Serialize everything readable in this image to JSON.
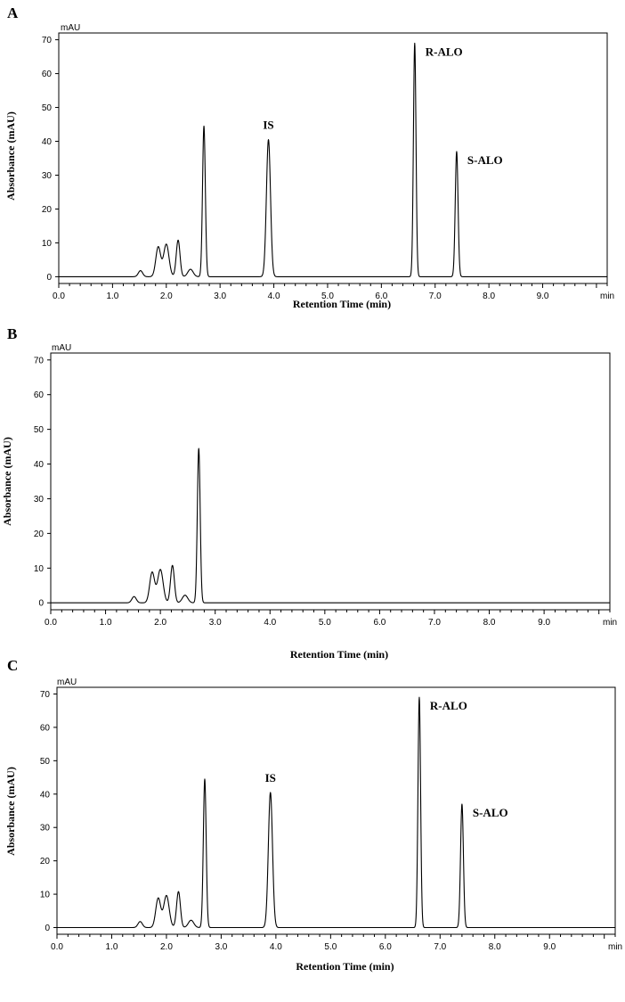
{
  "chart_data": [
    {
      "type": "line",
      "panel_label": "A",
      "y_unit": "mAU",
      "x_unit": "min",
      "xlabel": "Retention Time (min)",
      "ylabel": "Absorbance (mAU)",
      "xlim": [
        0,
        10.2
      ],
      "ylim": [
        -2,
        72
      ],
      "x_ticks": [
        "0.0",
        "1.0",
        "2.0",
        "3.0",
        "4.0",
        "5.0",
        "6.0",
        "7.0",
        "8.0",
        "9.0"
      ],
      "y_ticks": [
        "0",
        "10",
        "20",
        "30",
        "40",
        "50",
        "60",
        "70"
      ],
      "grid": false,
      "peaks": [
        {
          "t": 1.52,
          "h": 1.8,
          "w": 0.04
        },
        {
          "t": 1.85,
          "h": 8.8,
          "w": 0.045
        },
        {
          "t": 2.0,
          "h": 9.6,
          "w": 0.05
        },
        {
          "t": 2.22,
          "h": 10.8,
          "w": 0.035
        },
        {
          "t": 2.45,
          "h": 2.2,
          "w": 0.05
        },
        {
          "t": 2.7,
          "h": 44.5,
          "w": 0.026
        },
        {
          "t": 3.9,
          "h": 40.5,
          "w": 0.038
        },
        {
          "t": 6.62,
          "h": 69.0,
          "w": 0.024
        },
        {
          "t": 7.4,
          "h": 37.0,
          "w": 0.026
        }
      ],
      "annotations": [
        {
          "text": "IS",
          "x": 3.9
        },
        {
          "text": "R-ALO",
          "x": 6.62
        },
        {
          "text": "S-ALO",
          "x": 7.4
        }
      ]
    },
    {
      "type": "line",
      "panel_label": "B",
      "y_unit": "mAU",
      "x_unit": "min",
      "xlabel": "Retention Time (min)",
      "ylabel": "Absorbance (mAU)",
      "xlim": [
        0,
        10.2
      ],
      "ylim": [
        -2,
        72
      ],
      "x_ticks": [
        "0.0",
        "1.0",
        "2.0",
        "3.0",
        "4.0",
        "5.0",
        "6.0",
        "7.0",
        "8.0",
        "9.0"
      ],
      "y_ticks": [
        "0",
        "10",
        "20",
        "30",
        "40",
        "50",
        "60",
        "70"
      ],
      "grid": false,
      "peaks": [
        {
          "t": 1.52,
          "h": 1.8,
          "w": 0.04
        },
        {
          "t": 1.85,
          "h": 8.8,
          "w": 0.045
        },
        {
          "t": 2.0,
          "h": 9.6,
          "w": 0.05
        },
        {
          "t": 2.22,
          "h": 10.8,
          "w": 0.035
        },
        {
          "t": 2.45,
          "h": 2.2,
          "w": 0.05
        },
        {
          "t": 2.7,
          "h": 44.5,
          "w": 0.026
        }
      ],
      "annotations": []
    },
    {
      "type": "line",
      "panel_label": "C",
      "y_unit": "mAU",
      "x_unit": "min",
      "xlabel": "Retention Time (min)",
      "ylabel": "Absorbance (mAU)",
      "xlim": [
        0,
        10.2
      ],
      "ylim": [
        -2,
        72
      ],
      "x_ticks": [
        "0.0",
        "1.0",
        "2.0",
        "3.0",
        "4.0",
        "5.0",
        "6.0",
        "7.0",
        "8.0",
        "9.0"
      ],
      "y_ticks": [
        "0",
        "10",
        "20",
        "30",
        "40",
        "50",
        "60",
        "70"
      ],
      "grid": false,
      "peaks": [
        {
          "t": 1.52,
          "h": 1.8,
          "w": 0.04
        },
        {
          "t": 1.85,
          "h": 8.8,
          "w": 0.045
        },
        {
          "t": 2.0,
          "h": 9.6,
          "w": 0.05
        },
        {
          "t": 2.22,
          "h": 10.8,
          "w": 0.035
        },
        {
          "t": 2.45,
          "h": 2.2,
          "w": 0.05
        },
        {
          "t": 2.7,
          "h": 44.5,
          "w": 0.026
        },
        {
          "t": 3.9,
          "h": 40.5,
          "w": 0.038
        },
        {
          "t": 6.62,
          "h": 69.0,
          "w": 0.024
        },
        {
          "t": 7.4,
          "h": 37.0,
          "w": 0.026
        }
      ],
      "annotations": [
        {
          "text": "IS",
          "x": 3.9
        },
        {
          "text": "R-ALO",
          "x": 6.62
        },
        {
          "text": "S-ALO",
          "x": 7.4
        }
      ]
    }
  ]
}
